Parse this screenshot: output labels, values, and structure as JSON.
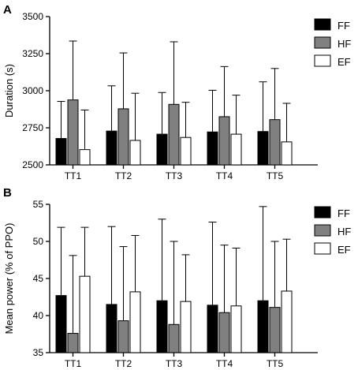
{
  "colors": {
    "FF": "#000000",
    "HF": "#808080",
    "EF": "#ffffff",
    "stroke": "#000000"
  },
  "chart_data": [
    {
      "panel_label": "A",
      "type": "bar",
      "categories": [
        "TT1",
        "TT2",
        "TT3",
        "TT4",
        "TT5"
      ],
      "ylabel": "Duration (s)",
      "ylim": [
        2500,
        3500
      ],
      "yticks": [
        2500,
        2750,
        3000,
        3250,
        3500
      ],
      "legend_position": "right",
      "series": [
        {
          "name": "FF",
          "values": [
            2678,
            2728,
            2707,
            2722,
            2725
          ],
          "err_upper": [
            2928,
            3033,
            2988,
            3003,
            3060
          ]
        },
        {
          "name": "HF",
          "values": [
            2938,
            2878,
            2908,
            2825,
            2805
          ],
          "err_upper": [
            3335,
            3255,
            3330,
            3163,
            3150
          ]
        },
        {
          "name": "EF",
          "values": [
            2603,
            2665,
            2685,
            2707,
            2655
          ],
          "err_upper": [
            2870,
            2983,
            2922,
            2970,
            2915
          ]
        }
      ]
    },
    {
      "panel_label": "B",
      "type": "bar",
      "categories": [
        "TT1",
        "TT2",
        "TT3",
        "TT4",
        "TT5"
      ],
      "ylabel": "Mean power (% of PPO)",
      "ylim": [
        35,
        55
      ],
      "yticks": [
        35,
        40,
        45,
        50,
        55
      ],
      "legend_position": "right",
      "series": [
        {
          "name": "FF",
          "values": [
            42.7,
            41.5,
            42.0,
            41.4,
            42.0
          ],
          "err_upper": [
            51.9,
            52.0,
            53.0,
            52.6,
            54.7
          ]
        },
        {
          "name": "HF",
          "values": [
            37.6,
            39.3,
            38.8,
            40.4,
            41.1
          ],
          "err_upper": [
            48.1,
            49.3,
            50.0,
            49.5,
            50.0
          ]
        },
        {
          "name": "EF",
          "values": [
            45.3,
            43.2,
            41.9,
            41.3,
            43.3
          ],
          "err_upper": [
            51.9,
            50.8,
            48.2,
            49.1,
            50.3
          ]
        }
      ]
    }
  ]
}
